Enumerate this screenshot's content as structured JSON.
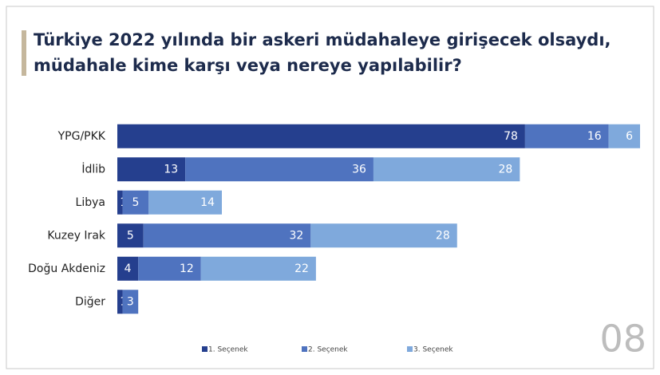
{
  "chart_data": {
    "type": "stacked-bar-horizontal",
    "title_lines": [
      "Türkiye 2022 yılında bir askeri müdahaleye girişecek olsaydı,",
      "müdahale kime karşı veya nereye yapılabilir?"
    ],
    "categories": [
      "YPG/PKK",
      "İdlib",
      "Libya",
      "Kuzey Irak",
      "Doğu Akdeniz",
      "Diğer"
    ],
    "series": [
      {
        "name": "1. Seçenek",
        "color": "#253f8e",
        "values": [
          78,
          13,
          1,
          5,
          4,
          1
        ]
      },
      {
        "name": "2. Seçenek",
        "color": "#4f73bf",
        "values": [
          16,
          36,
          5,
          32,
          12,
          3
        ]
      },
      {
        "name": "3. Seçenek",
        "color": "#7fa9dc",
        "values": [
          6,
          28,
          14,
          28,
          22,
          null
        ]
      }
    ],
    "xlim": [
      0,
      100
    ],
    "legend": "bottom",
    "page_number": "08"
  }
}
